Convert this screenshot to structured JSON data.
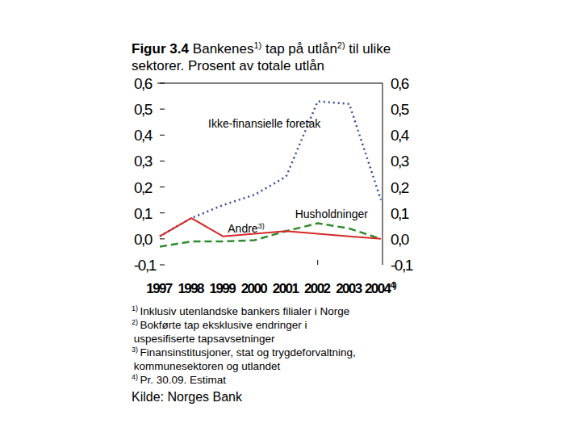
{
  "chart_data": {
    "type": "line",
    "title": "Figur 3.4",
    "subtitle": "Bankenes1) tap på utlån2) til ulike sektorer. Prosent av totale utlån",
    "categories": [
      "1997",
      "1998",
      "1999",
      "2000",
      "2001",
      "2002",
      "2003",
      "20044)"
    ],
    "series": [
      {
        "name": "Ikke-finansielle foretak",
        "color": "#3a4a9c",
        "line_style": "dotted",
        "values": [
          0.01,
          0.08,
          0.13,
          0.17,
          0.24,
          0.53,
          0.52,
          0.15
        ]
      },
      {
        "name": "Husholdninger",
        "color": "#2e8b2e",
        "line_style": "dashed",
        "values": [
          -0.03,
          -0.01,
          -0.01,
          -0.005,
          0.03,
          0.06,
          0.04,
          0.0
        ]
      },
      {
        "name": "Andre3)",
        "color": "#d42a2a",
        "line_style": "solid",
        "values": [
          0.01,
          0.08,
          0.01,
          0.02,
          0.03,
          0.02,
          0.01,
          0.0
        ]
      }
    ],
    "ylim": [
      -0.1,
      0.6
    ],
    "yticks": [
      {
        "value": -0.1,
        "label": "-0,1"
      },
      {
        "value": 0.0,
        "label": "0,0"
      },
      {
        "value": 0.1,
        "label": "0,1"
      },
      {
        "value": 0.2,
        "label": "0,2"
      },
      {
        "value": 0.3,
        "label": "0,3"
      },
      {
        "value": 0.4,
        "label": "0,4"
      },
      {
        "value": 0.5,
        "label": "0,5"
      },
      {
        "value": 0.6,
        "label": "0,6"
      }
    ],
    "grid": false,
    "footnotes": [
      "1) Inklusiv utenlandske bankers filialer i Norge",
      "2) Bokførte tap eksklusive endringer i uspesifiserte tapsavsetninger",
      "3) Finansinstitusjoner, stat og trygdeforvaltning, kommunesektoren og utlandet",
      "4) Pr. 30.09. Estimat"
    ],
    "source": "Kilde: Norges Bank"
  }
}
